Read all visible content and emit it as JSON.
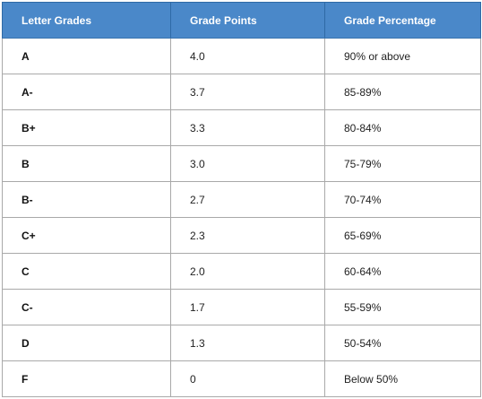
{
  "table": {
    "headers": [
      "Letter Grades",
      "Grade Points",
      "Grade Percentage"
    ],
    "rows": [
      [
        "A",
        "4.0",
        "90% or above"
      ],
      [
        "A-",
        "3.7",
        "85-89%"
      ],
      [
        "B+",
        "3.3",
        "80-84%"
      ],
      [
        "B",
        "3.0",
        "75-79%"
      ],
      [
        "B-",
        "2.7",
        "70-74%"
      ],
      [
        "C+",
        "2.3",
        "65-69%"
      ],
      [
        "C",
        "2.0",
        "60-64%"
      ],
      [
        "C-",
        "1.7",
        "55-59%"
      ],
      [
        "D",
        "1.3",
        "50-54%"
      ],
      [
        "F",
        "0",
        "Below 50%"
      ]
    ]
  },
  "colors": {
    "header_background": "#4a88c9",
    "header_text": "#ffffff",
    "border": "#a9a9a9"
  }
}
